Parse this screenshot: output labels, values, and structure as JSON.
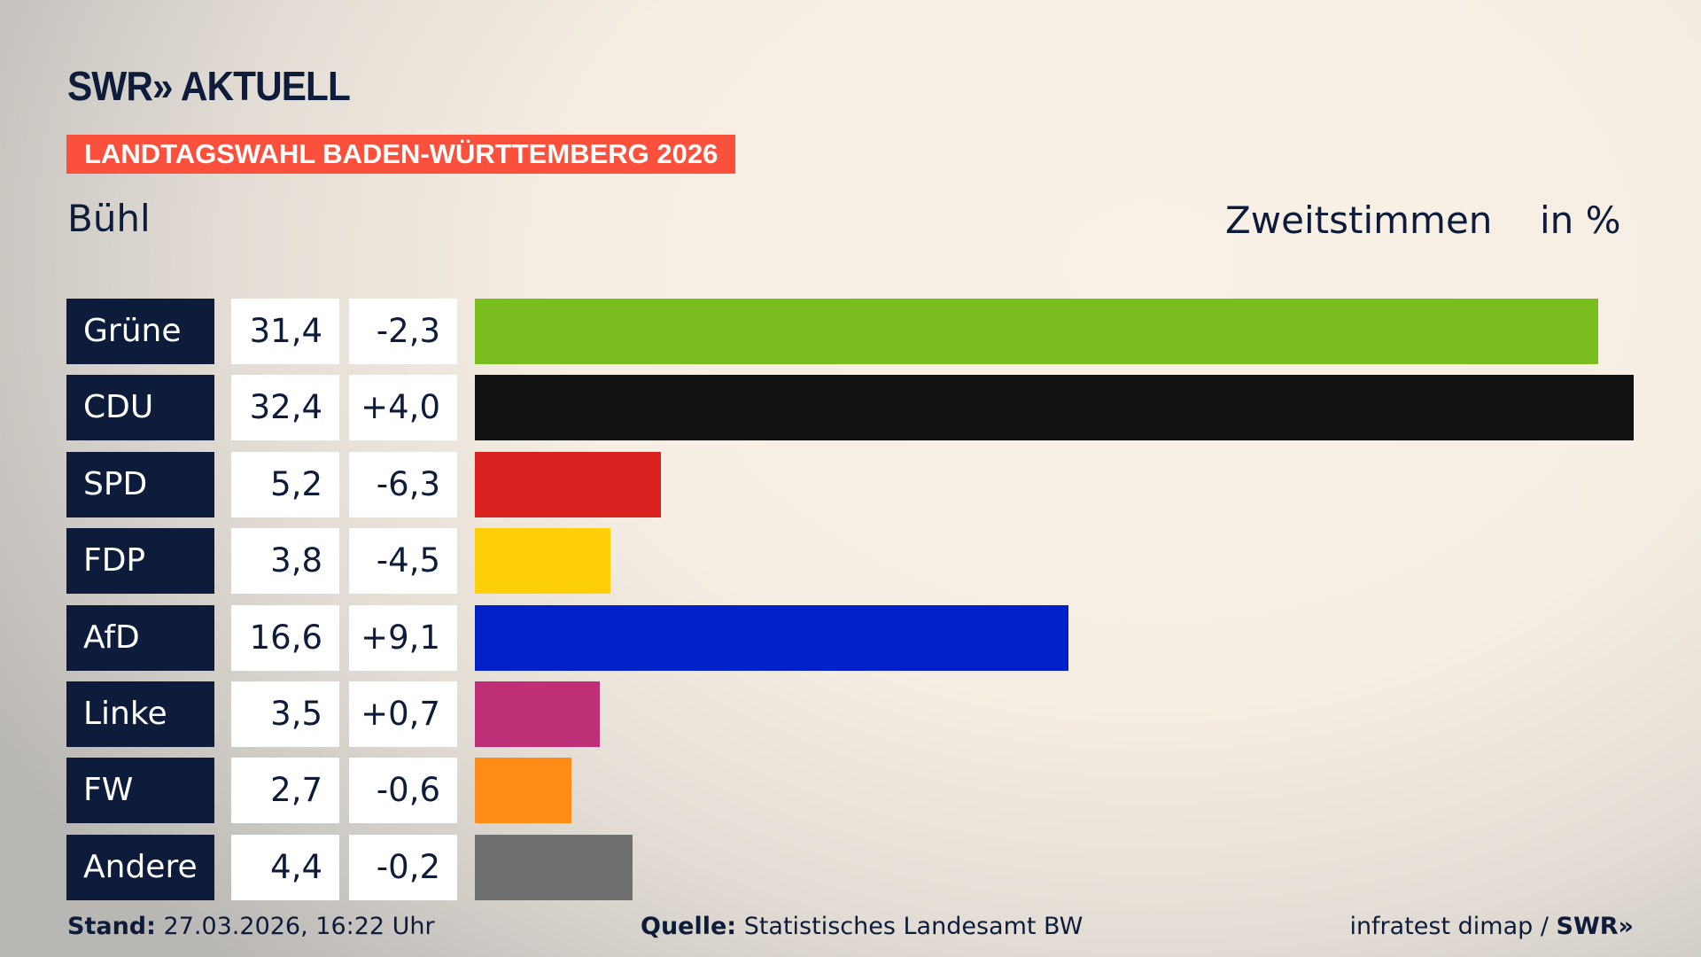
{
  "header": {
    "logo": "SWR» AKTUELL",
    "banner": "LANDTAGSWAHL BADEN-WÜRTTEMBERG 2026",
    "region": "Bühl",
    "vote_type": "Zweitstimmen",
    "unit": "in %"
  },
  "chart_data": {
    "type": "bar",
    "orientation": "horizontal",
    "title": "Bühl – Zweitstimmen in %",
    "categories": [
      "Grüne",
      "CDU",
      "SPD",
      "FDP",
      "AfD",
      "Linke",
      "FW",
      "Andere"
    ],
    "values": [
      31.4,
      32.4,
      5.2,
      3.8,
      16.6,
      3.5,
      2.7,
      4.4
    ],
    "value_labels": [
      "31,4",
      "32,4",
      "5,2",
      "3,8",
      "16,6",
      "3,5",
      "2,7",
      "4,4"
    ],
    "changes": [
      -2.3,
      4.0,
      -6.3,
      -4.5,
      9.1,
      0.7,
      -0.6,
      -0.2
    ],
    "change_labels": [
      "-2,3",
      "+4,0",
      "-6,3",
      "-4,5",
      "+9,1",
      "+0,7",
      "-0,6",
      "-0,2"
    ],
    "colors": [
      "#7abd1e",
      "#111111",
      "#d9201e",
      "#ffcf0a",
      "#0021c8",
      "#be2f78",
      "#ff8c17",
      "#707070"
    ],
    "xlim": [
      0,
      32.4
    ]
  },
  "footer": {
    "stand_label": "Stand:",
    "stand_value": "27.03.2026, 16:22 Uhr",
    "source_label": "Quelle:",
    "source_value": "Statistisches Landesamt BW",
    "credit": "infratest dimap / ",
    "credit_logo": "SWR»"
  }
}
